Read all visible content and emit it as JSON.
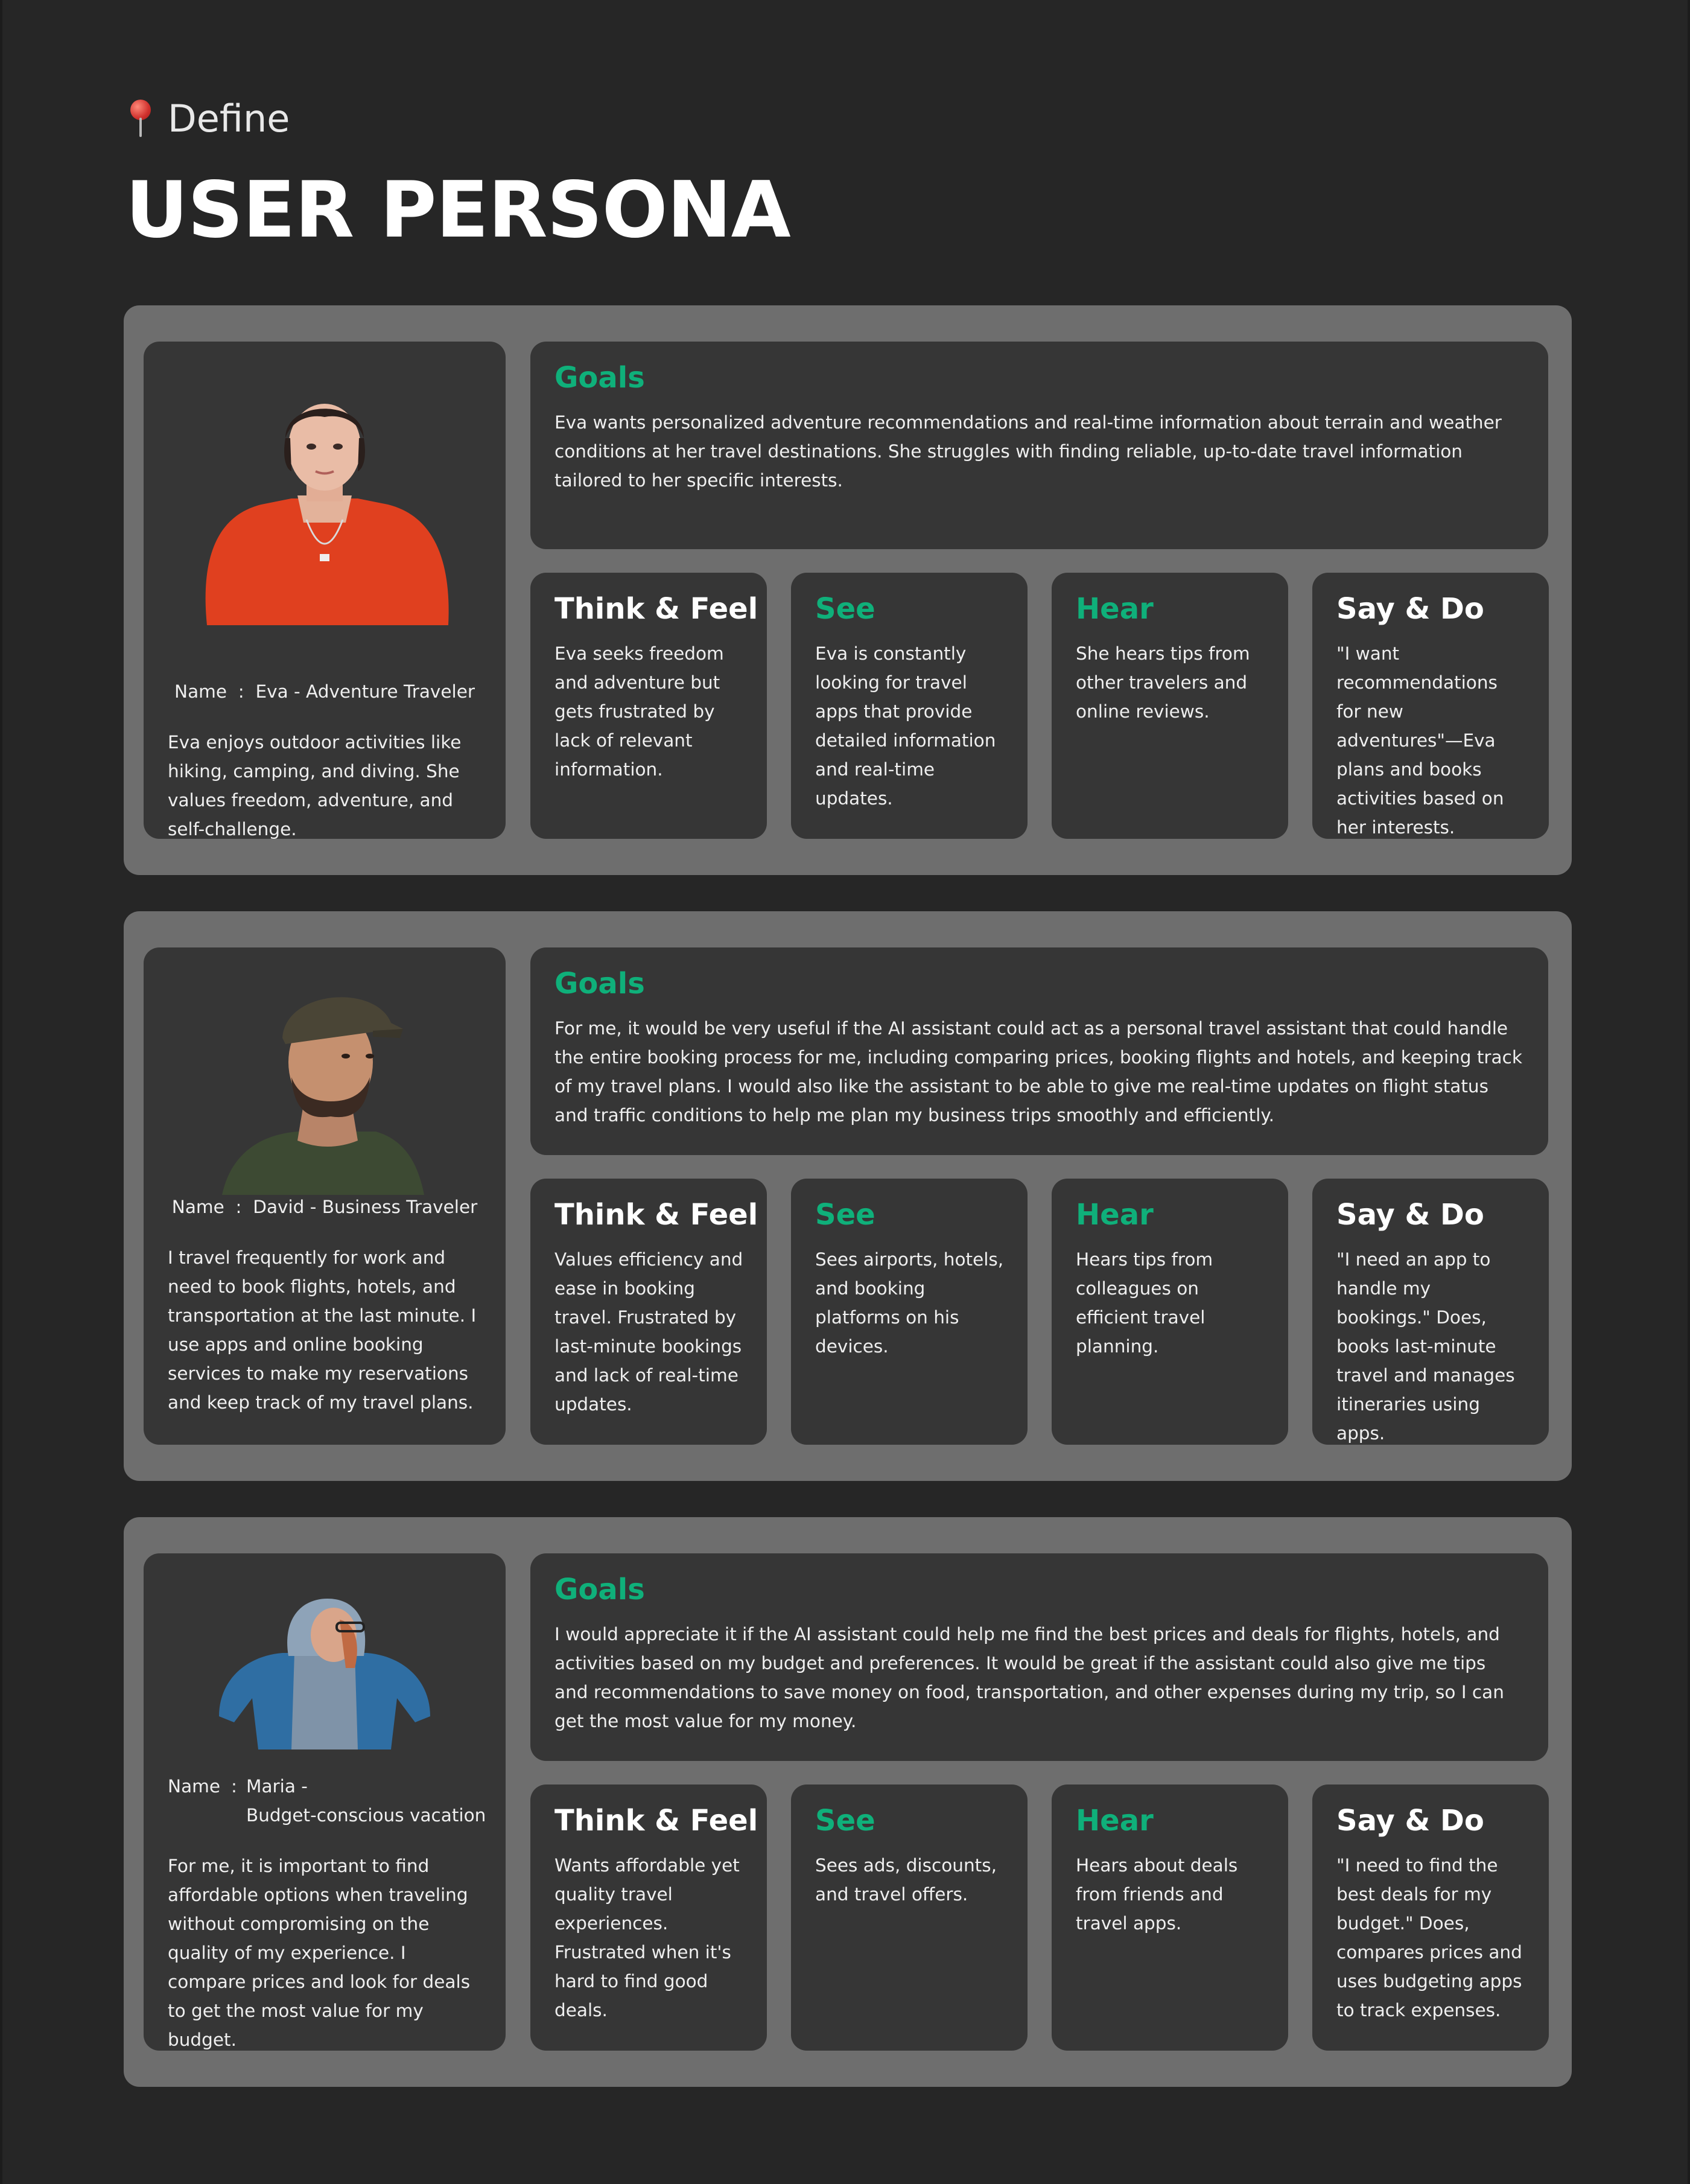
{
  "header": {
    "eyebrow": "Define",
    "title": "USER PERSONA",
    "pin_icon": "pin-icon"
  },
  "colors": {
    "accent": "#0fb07a",
    "background": "#262626",
    "panel": "#6e6e6e",
    "card": "#363636"
  },
  "personas": [
    {
      "name_label": "Name",
      "name_value": "Eva - Adventure Traveler",
      "name_value_line2": "",
      "bio": "Eva enjoys outdoor activities like hiking, camping, and diving. She values freedom, adventure, and self-challenge.",
      "goals_title": "Goals",
      "goals": "Eva wants personalized adventure recommendations and real-time information about terrain and weather conditions at her travel destinations. She struggles with finding reliable, up-to-date travel information tailored to her specific interests.",
      "think_title": "Think & Feel",
      "think": "Eva seeks freedom and adventure but gets frustrated by lack of relevant information.",
      "see_title": "See",
      "see": "Eva is constantly looking for travel apps that provide detailed information and real-time updates.",
      "hear_title": "Hear",
      "hear": "She hears tips from other travelers and online reviews.",
      "say_title": "Say & Do",
      "say": "\"I want recommendations for new adventures\"—Eva plans and books activities based on her interests."
    },
    {
      "name_label": "Name",
      "name_value": "David - Business Traveler",
      "name_value_line2": "",
      "bio": "I travel frequently for work and need to book flights, hotels, and transportation at the last minute. I use apps and online booking services to make my reservations and keep track of my travel plans.",
      "goals_title": "Goals",
      "goals": "For me, it would be very useful if the AI assistant could act as a personal travel assistant that could handle the entire booking process for me, including comparing prices, booking flights and hotels, and keeping track of my travel plans. I would also like the assistant to be able to give me real-time updates on flight status and traffic conditions to help me plan my business trips smoothly and efficiently.",
      "think_title": "Think & Feel",
      "think": "Values efficiency and ease in booking travel. Frustrated by last-minute bookings and lack of real-time updates.",
      "see_title": "See",
      "see": "Sees airports, hotels, and booking platforms on his devices.",
      "hear_title": "Hear",
      "hear": "Hears tips from colleagues on efficient travel planning.",
      "say_title": "Say & Do",
      "say": "\"I need an app to handle my bookings.\" Does, books last-minute travel and manages itineraries using apps."
    },
    {
      "name_label": "Name",
      "name_value": "Maria -",
      "name_value_line2": "Budget-conscious vacation",
      "bio": "For me, it is important to find affordable options when traveling without compromising on the quality of my experience. I compare prices and look for deals to get the most value for my budget.",
      "goals_title": "Goals",
      "goals": "I would appreciate it if the AI assistant could help me find the best prices and deals for flights, hotels, and activities based on my budget and preferences. It would be great if the assistant could also give me tips and recommendations to save money on food, transportation, and other expenses during my trip, so I can get the most value for my money.",
      "think_title": "Think & Feel",
      "think": "Wants affordable yet quality travel experiences. Frustrated when it's hard to find good deals.",
      "see_title": "See",
      "see": "Sees ads, discounts, and travel offers.",
      "hear_title": "Hear",
      "hear": "Hears about deals from friends and travel apps.",
      "say_title": "Say & Do",
      "say": " \"I need to find the best deals for my budget.\" Does, compares prices and uses budgeting apps to track expenses."
    }
  ]
}
